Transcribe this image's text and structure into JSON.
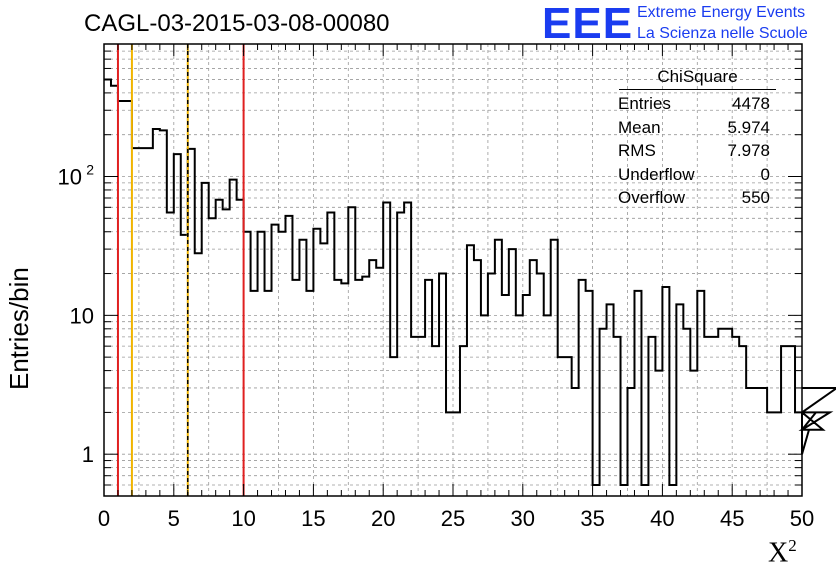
{
  "chart_data": {
    "type": "histogram",
    "title": "CAGL-03-2015-03-08-00080",
    "xlabel": "X",
    "xlabel_superscript": "2",
    "ylabel": "Entries/bin",
    "xlim": [
      0,
      50
    ],
    "ylim": [
      0.5,
      900
    ],
    "yscale": "log",
    "grid": true,
    "bin_width": 0.5,
    "x_ticks": [
      "0",
      "5",
      "10",
      "15",
      "20",
      "25",
      "30",
      "35",
      "40",
      "45",
      "50"
    ],
    "y_ticks": [
      {
        "value": 1,
        "label": "1"
      },
      {
        "value": 10,
        "label": "10"
      },
      {
        "value": 100,
        "label": "10",
        "exponent": "2"
      }
    ],
    "bin_values": [
      500,
      450,
      350,
      350,
      160,
      160,
      160,
      220,
      215,
      55,
      145,
      38,
      158,
      28,
      90,
      50,
      68,
      58,
      95,
      68,
      40,
      15,
      40,
      15,
      45,
      40,
      52,
      18,
      35,
      15,
      42,
      33,
      55,
      18,
      17,
      60,
      18,
      19,
      25,
      22,
      65,
      5,
      55,
      65,
      7,
      7,
      18,
      6,
      20,
      2,
      2,
      6,
      32,
      25,
      10,
      20,
      35,
      14,
      30,
      10,
      14,
      25,
      20,
      10,
      35,
      5,
      5,
      3,
      18,
      15,
      0.6,
      8,
      12,
      7,
      0.6,
      3,
      15,
      0.6,
      7,
      4,
      16,
      0.6,
      12,
      8,
      4,
      15,
      7,
      7,
      8,
      8,
      7,
      6,
      3,
      3,
      3,
      2,
      2,
      6,
      6,
      2,
      1,
      1.5,
      2,
      1.5,
      2,
      3,
      3
    ],
    "vertical_lines": [
      {
        "x": 1,
        "color": "#e02020",
        "style": "solid"
      },
      {
        "x": 2,
        "color": "#f0b400",
        "style": "solid"
      },
      {
        "x": 6,
        "color": "#f0b400",
        "style": "solid"
      },
      {
        "x": 6,
        "color": "#000000",
        "style": "dashed"
      },
      {
        "x": 10,
        "color": "#e02020",
        "style": "solid"
      }
    ],
    "stats": {
      "title": "ChiSquare",
      "rows": [
        {
          "label": "Entries",
          "value": "4478"
        },
        {
          "label": "Mean",
          "value": "5.974"
        },
        {
          "label": "RMS",
          "value": "7.978"
        },
        {
          "label": "Underflow",
          "value": "0"
        },
        {
          "label": "Overflow",
          "value": "550"
        }
      ]
    }
  },
  "logo": {
    "text": "EEE",
    "line1": "Extreme Energy Events",
    "line2": "La Scienza nelle Scuole",
    "color": "#1a3cf0"
  }
}
